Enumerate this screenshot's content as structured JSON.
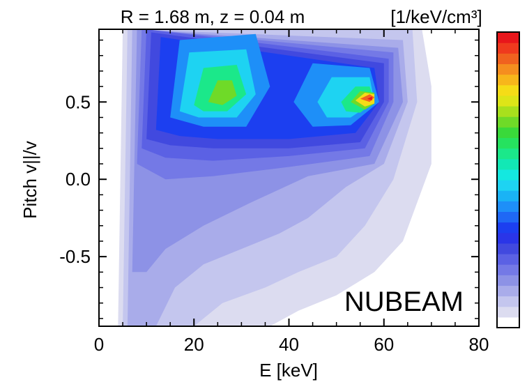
{
  "chart_data": {
    "type": "heatmap",
    "title": "R = 1.68 m, z = 0.04 m",
    "xlabel": "E [keV]",
    "ylabel": "Pitch v||/v",
    "xlim": [
      0,
      80
    ],
    "ylim": [
      -0.95,
      0.97
    ],
    "xticks": [
      "0",
      "20",
      "40",
      "60",
      "80"
    ],
    "yticks": [
      "0.5",
      "0.0",
      "-0.5"
    ],
    "colorbar": {
      "label": "[1/keV/cm³]",
      "colors": [
        "#ffffff",
        "#dcdcf0",
        "#c4c6ee",
        "#a9acea",
        "#8d92e6",
        "#7479e6",
        "#5b61e4",
        "#4149df",
        "#2a35e8",
        "#1c3ff0",
        "#1f68f5",
        "#1e8ff8",
        "#1ab3f5",
        "#1ed3f2",
        "#14e8e0",
        "#12e8b5",
        "#1be88a",
        "#26e25f",
        "#3ad93a",
        "#6fda28",
        "#a8e01d",
        "#dde518",
        "#f5dc17",
        "#f7b61b",
        "#f58e1f",
        "#f0621f",
        "#ef3a1e",
        "#e8161b"
      ]
    },
    "contour_levels": [
      {
        "level": 1,
        "regions": [
          [
            [
              4,
              -0.95
            ],
            [
              5,
              0.97
            ],
            [
              68,
              0.97
            ],
            [
              70,
              0.6
            ],
            [
              70,
              0.1
            ],
            [
              64,
              -0.4
            ],
            [
              58,
              -0.6
            ],
            [
              50,
              -0.75
            ],
            [
              42,
              -0.85
            ],
            [
              36,
              -0.95
            ]
          ]
        ]
      },
      {
        "level": 2,
        "regions": [
          [
            [
              5,
              -0.95
            ],
            [
              6,
              0.97
            ],
            [
              66,
              0.97
            ],
            [
              67,
              0.5
            ],
            [
              62,
              0.0
            ],
            [
              56,
              -0.3
            ],
            [
              50,
              -0.5
            ],
            [
              42,
              -0.6
            ],
            [
              35,
              -0.7
            ],
            [
              26,
              -0.8
            ],
            [
              20,
              -0.95
            ]
          ]
        ]
      },
      {
        "level": 3,
        "regions": [
          [
            [
              6,
              -0.95
            ],
            [
              7,
              0.97
            ],
            [
              64,
              0.9
            ],
            [
              65,
              0.5
            ],
            [
              60,
              0.1
            ],
            [
              52,
              -0.05
            ],
            [
              44,
              -0.25
            ],
            [
              38,
              -0.35
            ],
            [
              30,
              -0.45
            ],
            [
              22,
              -0.55
            ],
            [
              16,
              -0.7
            ],
            [
              12,
              -0.95
            ]
          ]
        ]
      },
      {
        "level": 4,
        "regions": [
          [
            [
              7,
              -0.6
            ],
            [
              8,
              0.97
            ],
            [
              63,
              0.85
            ],
            [
              64,
              0.5
            ],
            [
              58,
              0.1
            ],
            [
              44,
              0.02
            ],
            [
              32,
              -0.15
            ],
            [
              22,
              -0.3
            ],
            [
              14,
              -0.45
            ],
            [
              10,
              -0.6
            ]
          ]
        ]
      },
      {
        "level": 5,
        "regions": [
          [
            [
              8,
              0.1
            ],
            [
              9,
              0.97
            ],
            [
              62,
              0.82
            ],
            [
              62,
              0.5
            ],
            [
              57,
              0.15
            ],
            [
              40,
              0.08
            ],
            [
              24,
              0.02
            ],
            [
              14,
              0.0
            ]
          ]
        ]
      },
      {
        "level": 6,
        "regions": [
          [
            [
              9,
              0.2
            ],
            [
              10,
              0.97
            ],
            [
              61,
              0.78
            ],
            [
              61,
              0.5
            ],
            [
              56,
              0.2
            ],
            [
              40,
              0.15
            ],
            [
              24,
              0.12
            ],
            [
              14,
              0.14
            ]
          ]
        ]
      },
      {
        "level": 7,
        "regions": [
          [
            [
              10,
              0.26
            ],
            [
              11,
              0.95
            ],
            [
              60,
              0.75
            ],
            [
              60,
              0.5
            ],
            [
              55,
              0.24
            ],
            [
              40,
              0.2
            ],
            [
              24,
              0.2
            ],
            [
              15,
              0.22
            ]
          ]
        ]
      },
      {
        "level": 9,
        "regions": [
          [
            [
              12,
              0.32
            ],
            [
              13,
              0.92
            ],
            [
              58,
              0.72
            ],
            [
              59,
              0.5
            ],
            [
              54,
              0.3
            ],
            [
              40,
              0.26
            ],
            [
              25,
              0.26
            ],
            [
              17,
              0.28
            ]
          ]
        ]
      },
      {
        "level": 11,
        "regions": [
          [
            [
              15,
              0.4
            ],
            [
              17,
              0.9
            ],
            [
              33,
              0.94
            ],
            [
              36,
              0.6
            ],
            [
              31,
              0.34
            ],
            [
              22,
              0.34
            ]
          ]
        ]
      },
      {
        "level": 11,
        "regions": [
          [
            [
              41,
              0.5
            ],
            [
              45,
              0.75
            ],
            [
              57,
              0.72
            ],
            [
              59,
              0.5
            ],
            [
              53,
              0.35
            ],
            [
              45,
              0.34
            ]
          ]
        ]
      },
      {
        "level": 13,
        "regions": [
          [
            [
              17,
              0.44
            ],
            [
              19,
              0.82
            ],
            [
              31,
              0.84
            ],
            [
              33,
              0.55
            ],
            [
              29,
              0.4
            ],
            [
              21,
              0.4
            ]
          ]
        ]
      },
      {
        "level": 13,
        "regions": [
          [
            [
              46,
              0.5
            ],
            [
              49,
              0.66
            ],
            [
              57,
              0.66
            ],
            [
              58,
              0.5
            ],
            [
              53,
              0.4
            ],
            [
              48,
              0.4
            ]
          ]
        ]
      },
      {
        "level": 16,
        "regions": [
          [
            [
              20,
              0.48
            ],
            [
              22,
              0.72
            ],
            [
              29,
              0.74
            ],
            [
              31,
              0.55
            ],
            [
              27,
              0.44
            ],
            [
              22,
              0.44
            ]
          ]
        ]
      },
      {
        "level": 16,
        "regions": [
          [
            [
              51,
              0.5
            ],
            [
              54,
              0.6
            ],
            [
              57,
              0.6
            ],
            [
              58,
              0.5
            ],
            [
              55,
              0.43
            ],
            [
              52,
              0.44
            ]
          ]
        ]
      },
      {
        "level": 19,
        "regions": [
          [
            [
              23,
              0.5
            ],
            [
              25,
              0.64
            ],
            [
              28,
              0.64
            ],
            [
              29,
              0.54
            ],
            [
              26,
              0.48
            ]
          ]
        ]
      },
      {
        "level": 19,
        "regions": [
          [
            [
              53,
              0.5
            ],
            [
              55,
              0.57
            ],
            [
              58,
              0.56
            ],
            [
              58,
              0.49
            ],
            [
              56,
              0.45
            ]
          ]
        ]
      },
      {
        "level": 22,
        "regions": [
          [
            [
              54,
              0.51
            ],
            [
              56,
              0.56
            ],
            [
              58,
              0.55
            ],
            [
              58,
              0.49
            ],
            [
              56,
              0.47
            ]
          ]
        ]
      },
      {
        "level": 25,
        "regions": [
          [
            [
              55,
              0.52
            ],
            [
              57,
              0.55
            ],
            [
              58,
              0.53
            ],
            [
              57,
              0.5
            ]
          ]
        ]
      },
      {
        "level": 27,
        "regions": [
          [
            [
              56.5,
              0.52
            ],
            [
              57.5,
              0.535
            ],
            [
              57.5,
              0.51
            ]
          ]
        ]
      }
    ],
    "annotation": "NUBEAM"
  }
}
